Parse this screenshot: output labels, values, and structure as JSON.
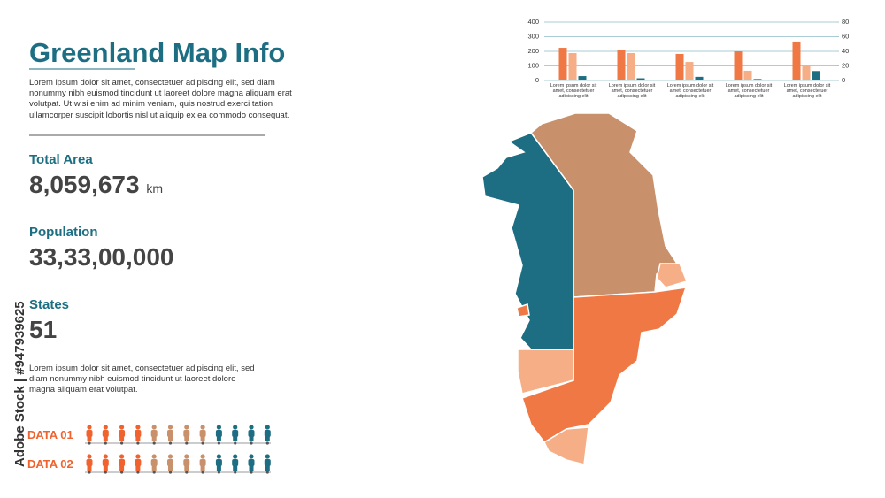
{
  "header": {
    "title": "Greenland Map Info",
    "description": "Lorem ipsum dolor sit amet, consectetuer adipiscing elit, sed diam nonummy nibh euismod tincidunt ut laoreet dolore magna aliquam erat volutpat. Ut wisi enim ad minim veniam, quis nostrud exerci tation ullamcorper suscipit lobortis nisl ut aliquip ex ea commodo consequat."
  },
  "stats": [
    {
      "label": "Total Area",
      "value": "8,059,673",
      "unit": "km"
    },
    {
      "label": "Population",
      "value": "33,33,00,000"
    },
    {
      "label": "States",
      "value": "51"
    }
  ],
  "note": "Lorem ipsum dolor sit amet, consectetuer adipiscing elit, sed diam nonummy nibh euismod tincidunt ut laoreet dolore magna aliquam erat volutpat.",
  "data_rows": [
    "DATA 01",
    "DATA 02"
  ],
  "watermark": "Adobe Stock | #947939625",
  "chart_data": {
    "type": "bar",
    "categories": [
      "Lorem ipsum dolor sit amet, consectetuer adipiscing elit",
      "Lorem ipsum dolor sit amet, consectetuer adipiscing elit",
      "Lorem ipsum dolor sit amet, consectetuer adipiscing elit",
      "Lorem ipsum dolor sit amet, consectetuer adipiscing elit",
      "Lorem ipsum dolor sit amet, consectetuer adipiscing elit"
    ],
    "series": [
      {
        "color": "#f07845",
        "values": [
          224,
          206,
          182,
          200,
          267
        ]
      },
      {
        "color": "#f5ae85",
        "values": [
          188,
          188,
          127,
          67,
          103
        ]
      },
      {
        "color": "#1d6e82",
        "values": [
          6,
          3,
          5,
          2,
          13
        ],
        "axis": "y2"
      }
    ],
    "ylim": [
      0,
      400
    ],
    "yticks": [
      0,
      100,
      200,
      300,
      400
    ],
    "y2lim": [
      0,
      80
    ],
    "y2ticks": [
      0,
      20,
      40,
      60,
      80
    ],
    "grid": true
  }
}
